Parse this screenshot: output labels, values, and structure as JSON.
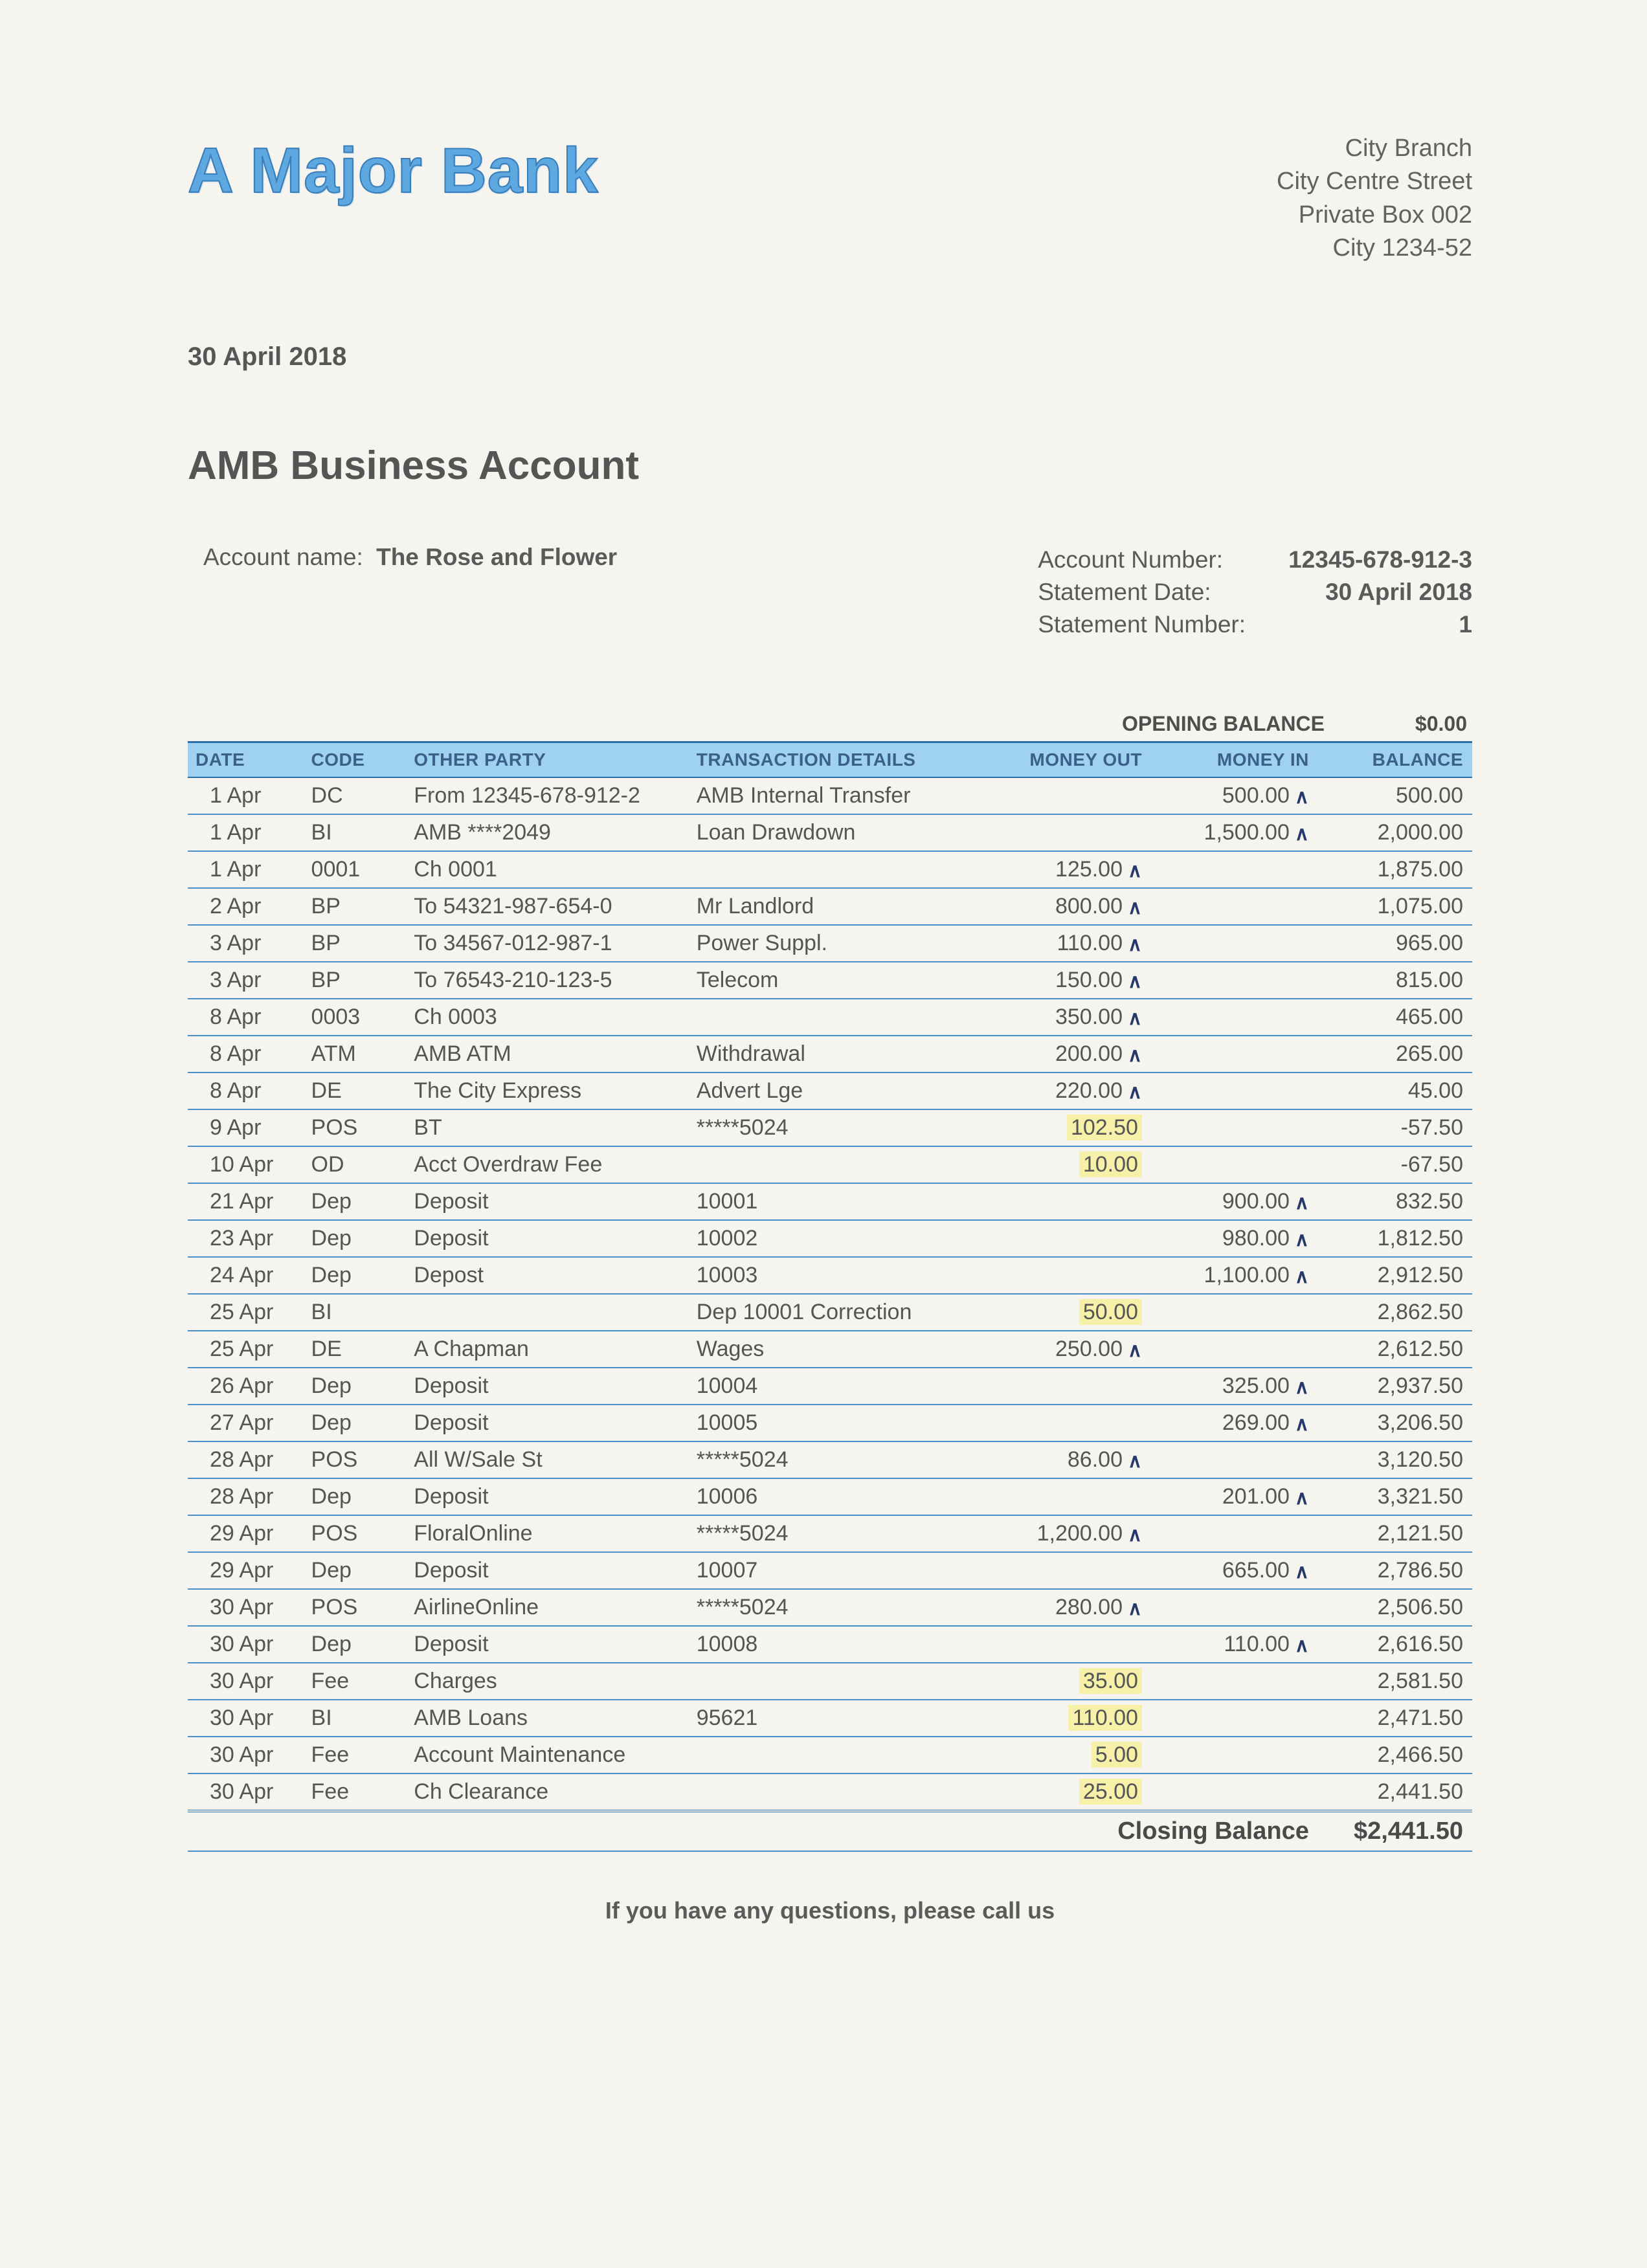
{
  "bank_name": "A Major Bank",
  "branch": {
    "name": "City Branch",
    "street": "City Centre Street",
    "box": "Private Box 002",
    "city": "City 1234-52"
  },
  "statement_date_top": "30 April 2018",
  "account_heading": "AMB Business Account",
  "labels": {
    "account_name": "Account name:",
    "account_number": "Account Number:",
    "statement_date": "Statement Date:",
    "statement_number": "Statement Number:",
    "opening_balance": "OPENING BALANCE",
    "closing_balance": "Closing Balance",
    "footer": "If you have any questions, please call us"
  },
  "account_name": "The Rose and Flower",
  "account_number": "12345-678-912-3",
  "statement_date": "30 April 2018",
  "statement_number": "1",
  "opening_balance": "$0.00",
  "closing_balance": "$2,441.50",
  "columns": {
    "date": "DATE",
    "code": "CODE",
    "other_party": "OTHER PARTY",
    "details": "TRANSACTION DETAILS",
    "out": "MONEY OUT",
    "in": "MONEY IN",
    "balance": "BALANCE"
  },
  "colors": {
    "header_row_bg": "#9fd2ee",
    "header_text": "#3b608a",
    "row_border": "#4a8fc9",
    "highlight_bg": "#f6f0a8",
    "logo_fill": "#5da8e0",
    "logo_stroke": "#3a7db8",
    "page_bg": "#f6f4ee",
    "text": "#5a5a5a",
    "tick_color": "#253a6b"
  },
  "rows": [
    {
      "date": "1 Apr",
      "code": "DC",
      "party": "From 12345-678-912-2",
      "details": "AMB Internal Transfer",
      "out": "",
      "in": "500.00",
      "in_tick": true,
      "bal": "500.00"
    },
    {
      "date": "1 Apr",
      "code": "BI",
      "party": "AMB ****2049",
      "details": "Loan Drawdown",
      "out": "",
      "in": "1,500.00",
      "in_tick": true,
      "bal": "2,000.00"
    },
    {
      "date": "1 Apr",
      "code": "0001",
      "party": "Ch 0001",
      "details": "",
      "out": "125.00",
      "out_tick": true,
      "in": "",
      "bal": "1,875.00"
    },
    {
      "date": "2 Apr",
      "code": "BP",
      "party": "To 54321-987-654-0",
      "details": "Mr Landlord",
      "out": "800.00",
      "out_tick": true,
      "in": "",
      "bal": "1,075.00"
    },
    {
      "date": "3 Apr",
      "code": "BP",
      "party": "To 34567-012-987-1",
      "details": "Power Suppl.",
      "out": "110.00",
      "out_tick": true,
      "in": "",
      "bal": "965.00"
    },
    {
      "date": "3 Apr",
      "code": "BP",
      "party": "To 76543-210-123-5",
      "details": "Telecom",
      "out": "150.00",
      "out_tick": true,
      "in": "",
      "bal": "815.00"
    },
    {
      "date": "8 Apr",
      "code": "0003",
      "party": "Ch 0003",
      "details": "",
      "out": "350.00",
      "out_tick": true,
      "in": "",
      "bal": "465.00"
    },
    {
      "date": "8 Apr",
      "code": "ATM",
      "party": "AMB ATM",
      "details": "Withdrawal",
      "out": "200.00",
      "out_tick": true,
      "in": "",
      "bal": "265.00"
    },
    {
      "date": "8 Apr",
      "code": "DE",
      "party": "The City Express",
      "details": "Advert Lge",
      "out": "220.00",
      "out_tick": true,
      "in": "",
      "bal": "45.00"
    },
    {
      "date": "9 Apr",
      "code": "POS",
      "party": "BT",
      "details": "*****5024",
      "out": "102.50",
      "out_hl": true,
      "in": "",
      "bal": "-57.50"
    },
    {
      "date": "10 Apr",
      "code": "OD",
      "party": "Acct Overdraw Fee",
      "details": "",
      "out": "10.00",
      "out_hl": true,
      "in": "",
      "bal": "-67.50"
    },
    {
      "date": "21 Apr",
      "code": "Dep",
      "party": "Deposit",
      "details": "10001",
      "out": "",
      "in": "900.00",
      "in_tick": true,
      "bal": "832.50"
    },
    {
      "date": "23 Apr",
      "code": "Dep",
      "party": "Deposit",
      "details": "10002",
      "out": "",
      "in": "980.00",
      "in_tick": true,
      "bal": "1,812.50"
    },
    {
      "date": "24 Apr",
      "code": "Dep",
      "party": "Depost",
      "details": "10003",
      "out": "",
      "in": "1,100.00",
      "in_tick": true,
      "bal": "2,912.50"
    },
    {
      "date": "25 Apr",
      "code": "BI",
      "party": "",
      "details": "Dep 10001 Correction",
      "out": "50.00",
      "out_hl": true,
      "in": "",
      "bal": "2,862.50"
    },
    {
      "date": "25 Apr",
      "code": "DE",
      "party": "A Chapman",
      "details": "Wages",
      "out": "250.00",
      "out_tick": true,
      "in": "",
      "bal": "2,612.50"
    },
    {
      "date": "26 Apr",
      "code": "Dep",
      "party": "Deposit",
      "details": "10004",
      "out": "",
      "in": "325.00",
      "in_tick": true,
      "bal": "2,937.50"
    },
    {
      "date": "27 Apr",
      "code": "Dep",
      "party": "Deposit",
      "details": "10005",
      "out": "",
      "in": "269.00",
      "in_tick": true,
      "bal": "3,206.50"
    },
    {
      "date": "28 Apr",
      "code": "POS",
      "party": "All W/Sale St",
      "details": "*****5024",
      "out": "86.00",
      "out_tick": true,
      "in": "",
      "bal": "3,120.50"
    },
    {
      "date": "28 Apr",
      "code": "Dep",
      "party": "Deposit",
      "details": "10006",
      "out": "",
      "in": "201.00",
      "in_tick": true,
      "bal": "3,321.50"
    },
    {
      "date": "29 Apr",
      "code": "POS",
      "party": "FloralOnline",
      "details": "*****5024",
      "out": "1,200.00",
      "out_tick": true,
      "in": "",
      "bal": "2,121.50"
    },
    {
      "date": "29 Apr",
      "code": "Dep",
      "party": "Deposit",
      "details": "10007",
      "out": "",
      "in": "665.00",
      "in_tick": true,
      "bal": "2,786.50"
    },
    {
      "date": "30 Apr",
      "code": "POS",
      "party": "AirlineOnline",
      "details": "*****5024",
      "out": "280.00",
      "out_tick": true,
      "in": "",
      "bal": "2,506.50"
    },
    {
      "date": "30 Apr",
      "code": "Dep",
      "party": "Deposit",
      "details": "10008",
      "out": "",
      "in": "110.00",
      "in_tick": true,
      "bal": "2,616.50"
    },
    {
      "date": "30 Apr",
      "code": "Fee",
      "party": "Charges",
      "details": "",
      "out": "35.00",
      "out_hl": true,
      "in": "",
      "bal": "2,581.50"
    },
    {
      "date": "30 Apr",
      "code": "BI",
      "party": "AMB Loans",
      "details": "95621",
      "out": "110.00",
      "out_hl": true,
      "in": "",
      "bal": "2,471.50"
    },
    {
      "date": "30 Apr",
      "code": "Fee",
      "party": "Account Maintenance",
      "details": "",
      "out": "5.00",
      "out_hl": true,
      "in": "",
      "bal": "2,466.50"
    },
    {
      "date": "30 Apr",
      "code": "Fee",
      "party": "Ch Clearance",
      "details": "",
      "out": "25.00",
      "out_hl": true,
      "in": "",
      "bal": "2,441.50"
    }
  ]
}
